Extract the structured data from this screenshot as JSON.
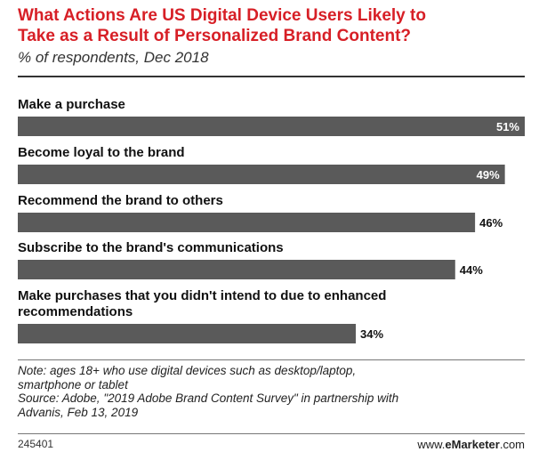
{
  "chart_data": {
    "type": "bar",
    "orientation": "horizontal",
    "title": "What Actions Are US Digital Device Users Likely to Take as a Result of Personalized Brand Content?",
    "title_lines": [
      "What Actions Are US Digital Device Users Likely to",
      "Take as a Result of Personalized Brand Content?"
    ],
    "subtitle": "% of respondents, Dec 2018",
    "categories": [
      "Make a purchase",
      "Become loyal to the brand",
      "Recommend the brand to others",
      "Subscribe to the brand's communications",
      "Make purchases that you didn't intend to due to enhanced recommendations"
    ],
    "category_lines": [
      [
        "Make a purchase"
      ],
      [
        "Become loyal to the brand"
      ],
      [
        "Recommend the brand to others"
      ],
      [
        "Subscribe to the brand's communications"
      ],
      [
        "Make purchases that you didn't intend to due to enhanced",
        "recommendations"
      ]
    ],
    "values": [
      51,
      49,
      46,
      44,
      34
    ],
    "value_labels": [
      "51%",
      "49%",
      "46%",
      "44%",
      "34%"
    ],
    "xlim": [
      0,
      51
    ],
    "grid": false,
    "bar_color": "#5a5a5a"
  },
  "footer": {
    "note_lines": [
      "Note: ages 18+ who use digital devices such as desktop/laptop,",
      "smartphone or tablet",
      "Source: Adobe, \"2019 Adobe Brand Content Survey\" in partnership with",
      "Advanis, Feb 13, 2019"
    ],
    "chart_id": "245401",
    "brand_prefix": "www.",
    "brand_name": "eMarketer",
    "brand_suffix": ".com"
  },
  "colors": {
    "title": "#d71f26",
    "bar": "#5a5a5a",
    "value_inside": "#ffffff",
    "value_outside": "#111111"
  }
}
